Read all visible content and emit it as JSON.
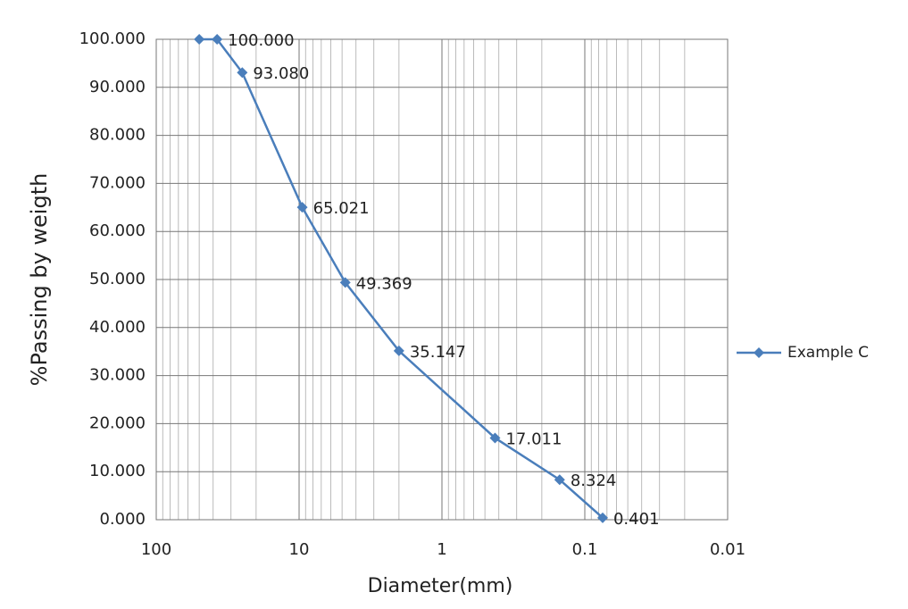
{
  "chart_data": {
    "type": "line",
    "x_label": "Diameter(mm)",
    "y_label": "%Passing by weigth",
    "x": [
      50,
      37.5,
      25,
      9.5,
      4.75,
      2,
      0.425,
      0.15,
      0.075
    ],
    "series": [
      {
        "name": "Example C",
        "color": "#4a7ebb",
        "values": [
          100,
          100,
          93.08,
          65.021,
          49.369,
          35.147,
          17.011,
          8.324,
          0.401
        ],
        "value_labels": [
          null,
          "100.000",
          "93.080",
          "65.021",
          "49.369",
          "35.147",
          "17.011",
          "8.324",
          "0.401"
        ]
      }
    ],
    "xlim": [
      100,
      0.01
    ],
    "xticks": [
      100,
      10,
      1,
      0.1,
      0.01
    ],
    "log_x": true,
    "ylim": [
      0,
      100
    ],
    "yticks": [
      {
        "value": 0,
        "label": "0.000"
      },
      {
        "value": 10,
        "label": "10.000"
      },
      {
        "value": 20,
        "label": "20.000"
      },
      {
        "value": 30,
        "label": "30.000"
      },
      {
        "value": 40,
        "label": "40.000"
      },
      {
        "value": 50,
        "label": "50.000"
      },
      {
        "value": 60,
        "label": "60.000"
      },
      {
        "value": 70,
        "label": "70.000"
      },
      {
        "value": 80,
        "label": "80.000"
      },
      {
        "value": 90,
        "label": "90.000"
      },
      {
        "value": 100,
        "label": "100.000"
      }
    ],
    "grid": true,
    "minor_grid": true,
    "legend": "right"
  }
}
